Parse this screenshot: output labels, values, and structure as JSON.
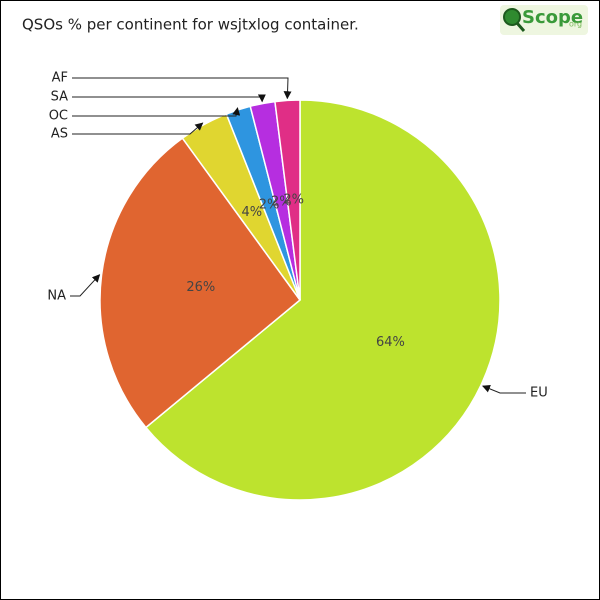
{
  "chart_data": {
    "type": "pie",
    "title": "QSOs % per continent for wsjtxlog container.",
    "logo": {
      "text": "Scope",
      "suffix": "org"
    },
    "categories": [
      "EU",
      "NA",
      "AS",
      "OC",
      "SA",
      "AF"
    ],
    "values": [
      64,
      26,
      4,
      2,
      2,
      2
    ],
    "value_labels": [
      "64%",
      "26%",
      "4%",
      "2%",
      "2%",
      "2%"
    ],
    "colors": [
      "#bde32e",
      "#e06530",
      "#e0d630",
      "#2e95e0",
      "#b62ee0",
      "#e02e86"
    ]
  }
}
